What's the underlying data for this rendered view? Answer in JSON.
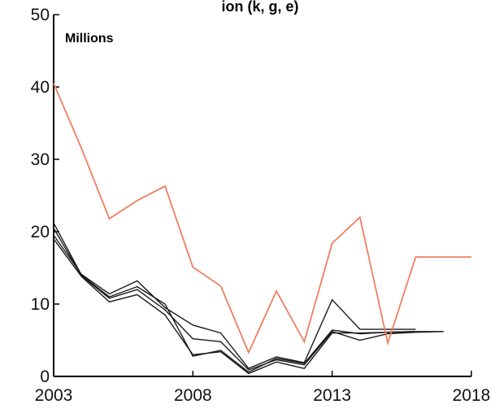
{
  "chart_data": {
    "type": "line",
    "title": "",
    "title_fragment": "ion (k, g, e)",
    "unit_label": "Millions",
    "xlabel": "",
    "ylabel": "",
    "xlim": [
      2003,
      2018
    ],
    "ylim": [
      0,
      50
    ],
    "x_ticks": [
      2003,
      2008,
      2013,
      2018
    ],
    "y_ticks": [
      0,
      10,
      20,
      30,
      40,
      50
    ],
    "grid": false,
    "legend": "none",
    "series": [
      {
        "color": "#f07e60",
        "x": [
          2003,
          2004,
          2005,
          2006,
          2007,
          2008,
          2009,
          2010,
          2011,
          2012,
          2013,
          2014,
          2015,
          2016,
          2017,
          2018
        ],
        "values": [
          40.5,
          31.5,
          21.8,
          24.3,
          26.3,
          15.1,
          12.5,
          3.3,
          11.8,
          4.8,
          18.4,
          22.0,
          4.6,
          16.5,
          16.5,
          16.5
        ]
      },
      {
        "color": "#1a1a1a",
        "x": [
          2003,
          2004,
          2005,
          2006,
          2007,
          2008,
          2009,
          2010,
          2011,
          2012,
          2013,
          2014,
          2015,
          2016
        ],
        "values": [
          21.2,
          14.0,
          11.0,
          12.4,
          10.0,
          2.8,
          3.6,
          0.6,
          2.5,
          1.8,
          6.4,
          5.9,
          6.1,
          6.2
        ]
      },
      {
        "color": "#1a1a1a",
        "x": [
          2003,
          2004,
          2005,
          2006,
          2007,
          2008,
          2009,
          2010,
          2011,
          2012,
          2013,
          2014,
          2015,
          2016
        ],
        "values": [
          19.5,
          14.1,
          11.4,
          13.2,
          9.5,
          7.1,
          6.0,
          1.1,
          2.7,
          1.9,
          10.6,
          6.5,
          6.5,
          6.5
        ]
      },
      {
        "color": "#1a1a1a",
        "x": [
          2003,
          2004,
          2005,
          2006,
          2007,
          2008,
          2009,
          2010,
          2011,
          2012,
          2013,
          2014,
          2015,
          2016,
          2017
        ],
        "values": [
          20.5,
          13.9,
          10.8,
          12.0,
          9.2,
          5.2,
          4.8,
          0.9,
          2.3,
          1.6,
          6.2,
          5.0,
          5.9,
          6.1,
          6.2
        ]
      },
      {
        "color": "#1a1a1a",
        "x": [
          2003,
          2004,
          2005,
          2006,
          2007,
          2008,
          2009,
          2010,
          2011,
          2012,
          2013,
          2014,
          2015,
          2016,
          2017
        ],
        "values": [
          19.0,
          13.8,
          10.3,
          11.3,
          8.5,
          3.0,
          3.4,
          0.4,
          2.0,
          1.1,
          6.0,
          6.0,
          6.1,
          6.2,
          6.2
        ]
      }
    ]
  }
}
